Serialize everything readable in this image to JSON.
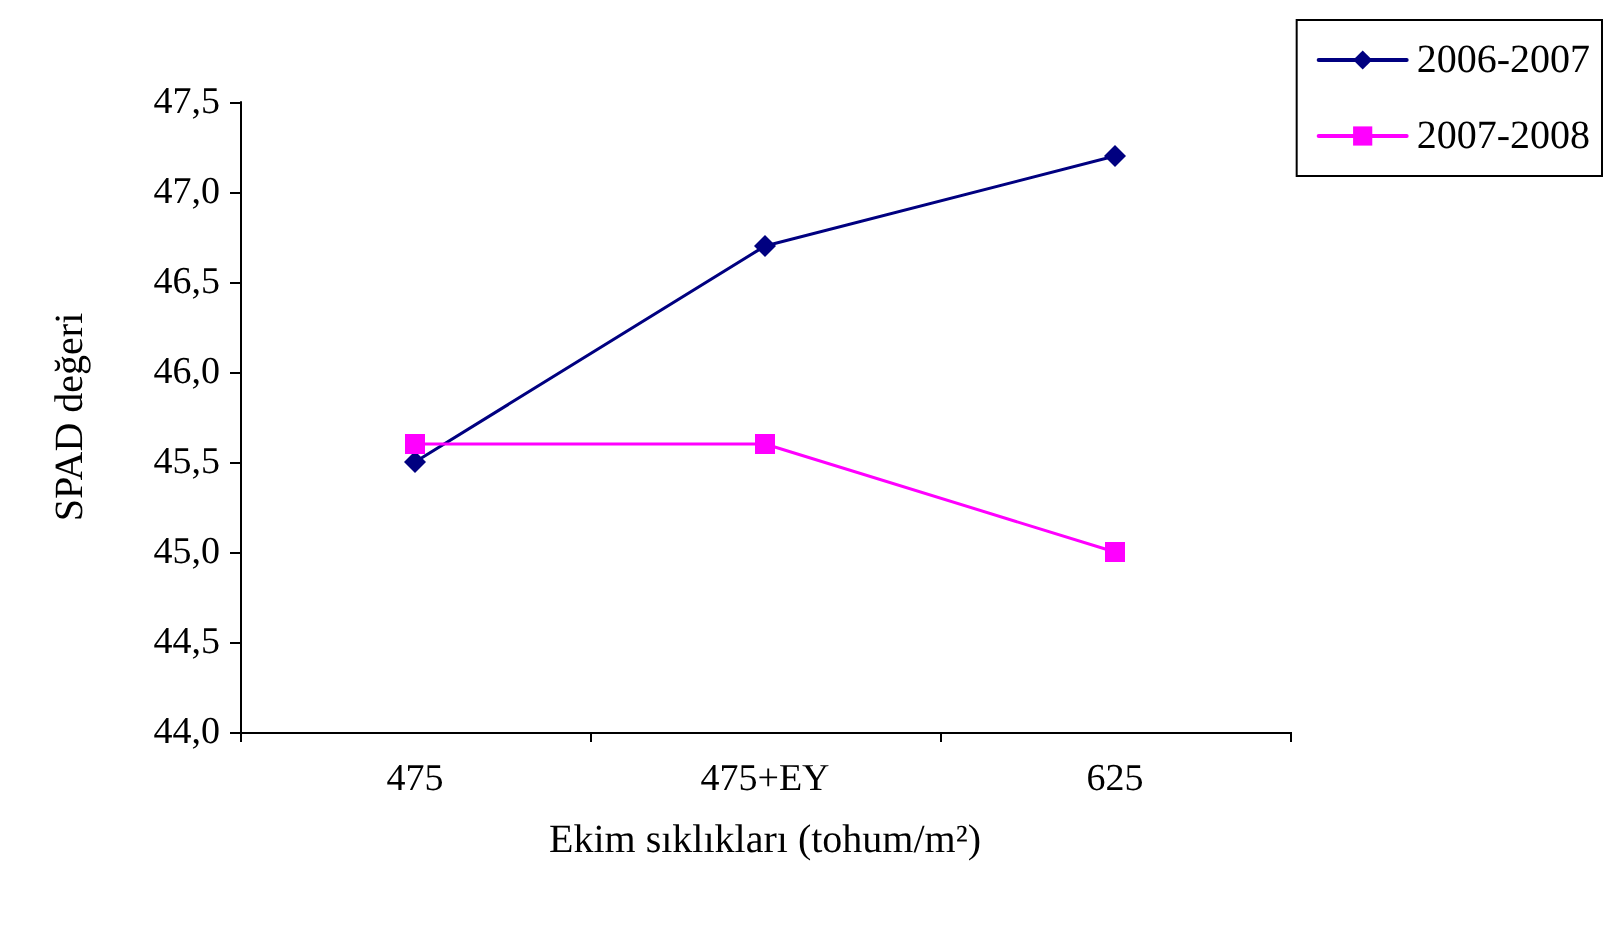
{
  "chart_data": {
    "type": "line",
    "xlabel": "Ekim sıklıkları (tohum/m²)",
    "ylabel": "SPAD değeri",
    "categories": [
      "475",
      "475+EY",
      "625"
    ],
    "series": [
      {
        "name": "2006-2007",
        "color": "#000080",
        "marker": "diamond",
        "values": [
          45.5,
          46.7,
          47.2
        ]
      },
      {
        "name": "2007-2008",
        "color": "#ff00ff",
        "marker": "square",
        "values": [
          45.6,
          45.6,
          45.0
        ]
      }
    ],
    "ylim": [
      44,
      47.5
    ],
    "yticks": [
      {
        "value": 44,
        "label": "44,0"
      },
      {
        "value": 44.5,
        "label": "44,5"
      },
      {
        "value": 45,
        "label": "45,0"
      },
      {
        "value": 45.5,
        "label": "45,5"
      },
      {
        "value": 46,
        "label": "46,0"
      },
      {
        "value": 46.5,
        "label": "46,5"
      },
      {
        "value": 47,
        "label": "47,0"
      },
      {
        "value": 47.5,
        "label": "47,5"
      }
    ],
    "grid": false,
    "legend": "top right",
    "line_style": "solid"
  }
}
